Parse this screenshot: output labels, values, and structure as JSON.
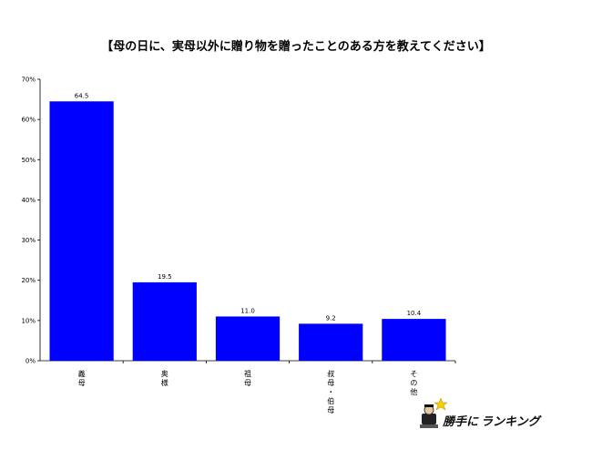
{
  "chart_data": {
    "type": "bar",
    "title": "【母の日に、実母以外に贈り物を贈ったことのある方を教えてください】",
    "categories": [
      "義母",
      "奥様",
      "祖母",
      "叔母・伯母",
      "その他"
    ],
    "values": [
      64.5,
      19.5,
      11.0,
      9.2,
      10.4
    ],
    "value_labels": [
      "64.5",
      "19.5",
      "11.0",
      "9.2",
      "10.4"
    ],
    "ylim": [
      0,
      70
    ],
    "yticks": [
      "0%",
      "10%",
      "20%",
      "30%",
      "40%",
      "50%",
      "60%",
      "70%"
    ],
    "xlabel": "",
    "ylabel": "",
    "grid": false,
    "bar_color": "#0000ff",
    "legend": "none"
  },
  "logo": {
    "text_main": "勝手に",
    "text_sub": "ランキング",
    "star_color": "#f5d000"
  }
}
